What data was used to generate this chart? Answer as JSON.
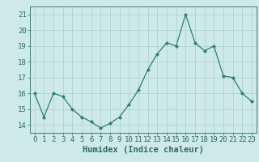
{
  "x": [
    0,
    1,
    2,
    3,
    4,
    5,
    6,
    7,
    8,
    9,
    10,
    11,
    12,
    13,
    14,
    15,
    16,
    17,
    18,
    19,
    20,
    21,
    22,
    23
  ],
  "y": [
    16,
    14.5,
    16,
    15.8,
    15,
    14.5,
    14.2,
    13.8,
    14.1,
    14.5,
    15.3,
    16.2,
    17.5,
    18.5,
    19.2,
    19.0,
    21.0,
    19.2,
    18.7,
    19.0,
    17.1,
    17.0,
    16.0,
    15.5
  ],
  "line_color": "#2e7d6e",
  "marker": "D",
  "marker_size": 2.0,
  "bg_color": "#ceeae7",
  "grid_color": "#aacfcc",
  "xlabel": "Humidex (Indice chaleur)",
  "xlim": [
    -0.5,
    23.5
  ],
  "ylim": [
    13.5,
    21.5
  ],
  "yticks": [
    14,
    15,
    16,
    17,
    18,
    19,
    20,
    21
  ],
  "xticks": [
    0,
    1,
    2,
    3,
    4,
    5,
    6,
    7,
    8,
    9,
    10,
    11,
    12,
    13,
    14,
    15,
    16,
    17,
    18,
    19,
    20,
    21,
    22,
    23
  ],
  "tick_color": "#2e6b60",
  "xlabel_fontsize": 7.5,
  "tick_fontsize": 6.5
}
